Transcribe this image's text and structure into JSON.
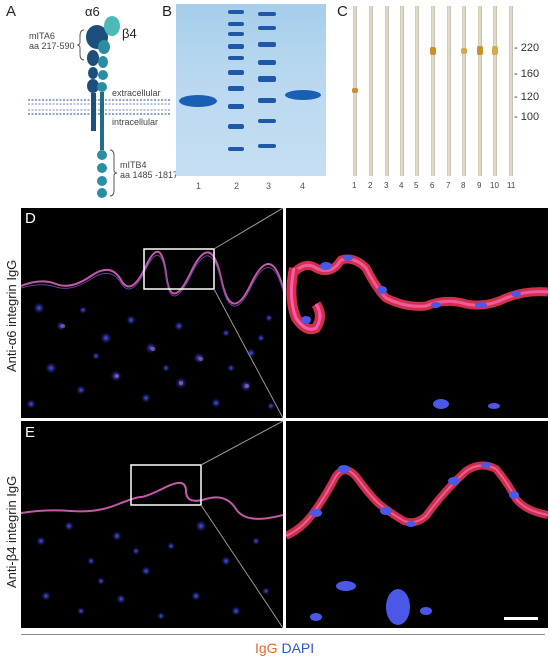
{
  "panels": {
    "A": {
      "letter": "A",
      "alpha": "α6",
      "beta": "β4",
      "itga6_name": "mITA6",
      "itga6_range": "aa 217-590",
      "extracellular": "extracellular",
      "intracellular": "intracellular",
      "itb4_name": "mITB4",
      "itb4_range": "aa 1485 -1817"
    },
    "B": {
      "letter": "B",
      "lanes": [
        "1",
        "2",
        "3",
        "4"
      ]
    },
    "C": {
      "letter": "C",
      "lanes": [
        "1",
        "2",
        "3",
        "4",
        "5",
        "6",
        "7",
        "8",
        "9",
        "10",
        "11"
      ],
      "mw_markers": [
        "220",
        "160",
        "120",
        "100"
      ]
    },
    "D": {
      "letter": "D",
      "side_label": "Anti-α6 integrin IgG"
    },
    "E": {
      "letter": "E",
      "side_label": "Anti-β4 integrin IgG"
    }
  },
  "legend": {
    "igg": "IgG",
    "dapi": "DAPI",
    "igg_color": "#e8662e",
    "dapi_color": "#2f55d4"
  }
}
